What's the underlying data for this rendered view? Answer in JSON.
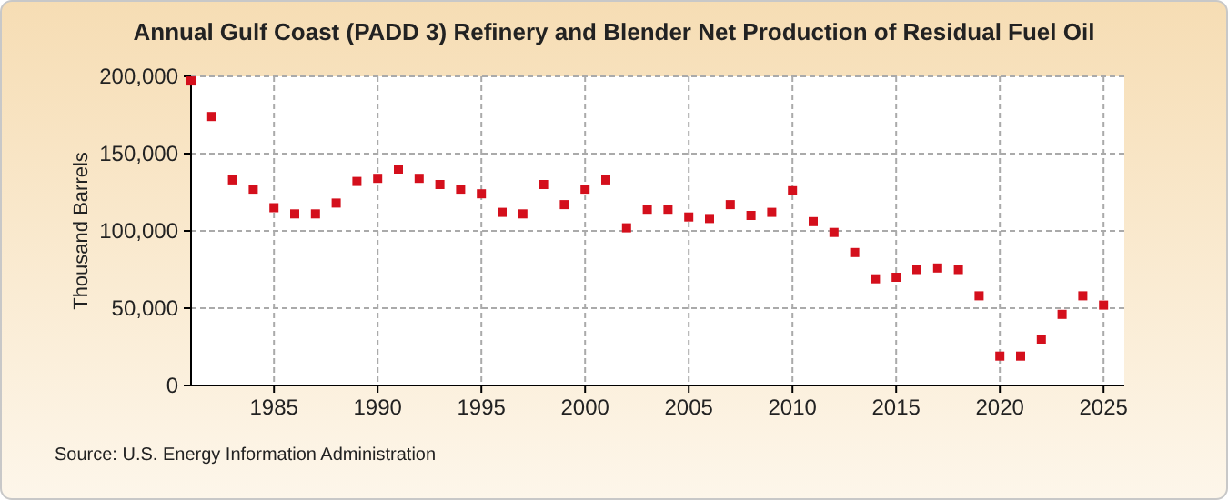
{
  "chart_data": {
    "type": "scatter",
    "title": "Annual Gulf Coast (PADD 3) Refinery and Blender Net Production of Residual Fuel Oil",
    "ylabel": "Thousand Barrels",
    "annotations": [
      "Source: U.S. Energy Information Administration"
    ],
    "x": [
      1981,
      1982,
      1983,
      1984,
      1985,
      1986,
      1987,
      1988,
      1989,
      1990,
      1991,
      1992,
      1993,
      1994,
      1995,
      1996,
      1997,
      1998,
      1999,
      2000,
      2001,
      2002,
      2003,
      2004,
      2005,
      2006,
      2007,
      2008,
      2009,
      2010,
      2011,
      2012,
      2013,
      2014,
      2015,
      2016,
      2017,
      2018,
      2019,
      2020,
      2021,
      2022,
      2023,
      2024,
      2025
    ],
    "series": [
      {
        "color": "#d40f1c",
        "values": [
          197000,
          174000,
          133000,
          127000,
          115000,
          111000,
          111000,
          118000,
          132000,
          134000,
          140000,
          134000,
          130000,
          127000,
          124000,
          112000,
          111000,
          130000,
          117000,
          127000,
          133000,
          102000,
          114000,
          114000,
          109000,
          108000,
          117000,
          110000,
          112000,
          126000,
          106000,
          99000,
          86000,
          69000,
          70000,
          75000,
          76000,
          75000,
          58000,
          19000,
          19000,
          30000,
          46000,
          58000,
          52000
        ]
      }
    ],
    "xlim": [
      1981,
      2026
    ],
    "xticks": [
      1985,
      1990,
      1995,
      2000,
      2005,
      2010,
      2015,
      2020,
      2025
    ],
    "ylim": [
      0,
      200000
    ],
    "yticks": [
      {
        "value": 0,
        "label": "0"
      },
      {
        "value": 50000,
        "label": "50,000"
      },
      {
        "value": 100000,
        "label": "100,000"
      },
      {
        "value": 150000,
        "label": "150,000"
      },
      {
        "value": 200000,
        "label": "200,000"
      }
    ],
    "grid": true,
    "marker": "square"
  }
}
